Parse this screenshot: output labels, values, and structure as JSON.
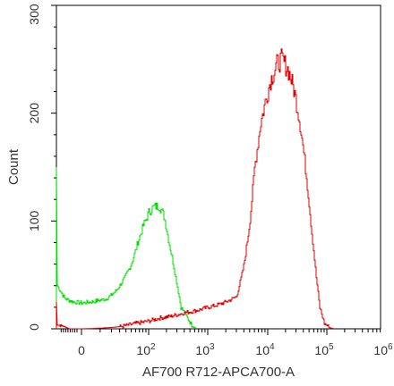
{
  "chart_data": {
    "type": "line",
    "title": "",
    "xlabel": "AF700 R712-APCA700-A",
    "ylabel": "Count",
    "x_scale": "biexponential",
    "ylim": [
      0,
      300
    ],
    "grid": false,
    "legend": "none",
    "x_ticks": [
      {
        "value": 0,
        "base": "0",
        "exp": ""
      },
      {
        "value": 100,
        "base": "10",
        "exp": "2"
      },
      {
        "value": 1000,
        "base": "10",
        "exp": "3"
      },
      {
        "value": 10000,
        "base": "10",
        "exp": "4"
      },
      {
        "value": 100000,
        "base": "10",
        "exp": "5"
      },
      {
        "value": 1000000,
        "base": "10",
        "exp": "6"
      }
    ],
    "y_ticks": [
      0,
      100,
      200,
      300
    ],
    "series": [
      {
        "color": "#00dd00",
        "points": [
          [
            -300,
            0
          ],
          [
            -300,
            150
          ],
          [
            -290,
            40
          ],
          [
            -200,
            28
          ],
          [
            -100,
            25
          ],
          [
            0,
            24
          ],
          [
            8,
            26
          ],
          [
            15,
            28
          ],
          [
            25,
            35
          ],
          [
            35,
            45
          ],
          [
            50,
            60
          ],
          [
            65,
            80
          ],
          [
            80,
            95
          ],
          [
            100,
            108
          ],
          [
            120,
            113
          ],
          [
            150,
            114
          ],
          [
            180,
            105
          ],
          [
            220,
            80
          ],
          [
            280,
            50
          ],
          [
            350,
            20
          ],
          [
            450,
            10
          ],
          [
            550,
            2
          ],
          [
            650,
            0
          ]
        ]
      },
      {
        "color": "#dd0000",
        "points": [
          [
            -300,
            0
          ],
          [
            -300,
            25
          ],
          [
            -290,
            5
          ],
          [
            -150,
            0
          ],
          [
            0,
            0
          ],
          [
            30,
            2
          ],
          [
            60,
            5
          ],
          [
            150,
            10
          ],
          [
            400,
            15
          ],
          [
            1000,
            20
          ],
          [
            2000,
            25
          ],
          [
            3000,
            30
          ],
          [
            4000,
            60
          ],
          [
            5000,
            100
          ],
          [
            6000,
            150
          ],
          [
            7500,
            190
          ],
          [
            9000,
            210
          ],
          [
            11000,
            230
          ],
          [
            14000,
            245
          ],
          [
            17000,
            250
          ],
          [
            22000,
            240
          ],
          [
            28000,
            220
          ],
          [
            35000,
            190
          ],
          [
            45000,
            140
          ],
          [
            55000,
            90
          ],
          [
            65000,
            50
          ],
          [
            75000,
            20
          ],
          [
            90000,
            5
          ],
          [
            110000,
            1
          ],
          [
            130000,
            0
          ]
        ]
      }
    ]
  }
}
